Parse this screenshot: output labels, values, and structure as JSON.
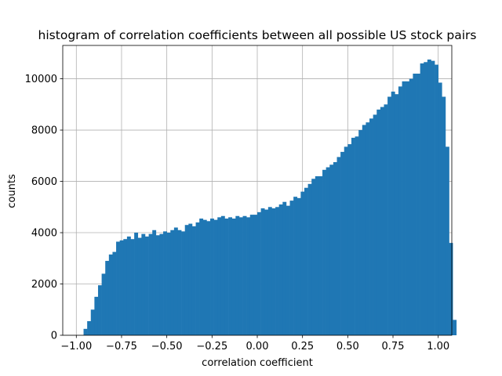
{
  "chart_data": {
    "type": "bar",
    "title": "histogram of correlation coefficients between all possible US stock pairs",
    "xlabel": "correlation coefficient",
    "ylabel": "counts",
    "xlim": [
      -1.075,
      1.075
    ],
    "ylim": [
      0,
      11300
    ],
    "grid": true,
    "bar_color": "#1f77b4",
    "bin_width": 0.02,
    "bin_start": -0.96,
    "xticks": [
      -1.0,
      -0.75,
      -0.5,
      -0.25,
      0.0,
      0.25,
      0.5,
      0.75,
      1.0
    ],
    "xtick_labels": [
      "−1.00",
      "−0.75",
      "−0.50",
      "−0.25",
      "0.00",
      "0.25",
      "0.50",
      "0.75",
      "1.00"
    ],
    "yticks": [
      0,
      2000,
      4000,
      6000,
      8000,
      10000
    ],
    "ytick_labels": [
      "0",
      "2000",
      "4000",
      "6000",
      "8000",
      "10000"
    ],
    "values": [
      250,
      550,
      1000,
      1500,
      1950,
      2400,
      2900,
      3150,
      3250,
      3650,
      3700,
      3750,
      3850,
      3750,
      4000,
      3800,
      3950,
      3850,
      3950,
      4100,
      3900,
      3950,
      4050,
      4000,
      4100,
      4200,
      4100,
      4050,
      4300,
      4350,
      4250,
      4400,
      4550,
      4500,
      4450,
      4550,
      4500,
      4600,
      4650,
      4550,
      4600,
      4550,
      4650,
      4600,
      4650,
      4600,
      4700,
      4700,
      4800,
      4950,
      4900,
      5000,
      4950,
      5000,
      5100,
      5200,
      5050,
      5250,
      5400,
      5350,
      5600,
      5750,
      5900,
      6100,
      6200,
      6200,
      6450,
      6550,
      6650,
      6750,
      6950,
      7150,
      7350,
      7450,
      7700,
      7750,
      8000,
      8200,
      8300,
      8450,
      8600,
      8800,
      8900,
      9000,
      9300,
      9500,
      9400,
      9700,
      9900,
      9900,
      10000,
      10200,
      10200,
      10600,
      10650,
      10750,
      10700,
      10550,
      9850,
      9300,
      7350,
      3600,
      600
    ]
  }
}
